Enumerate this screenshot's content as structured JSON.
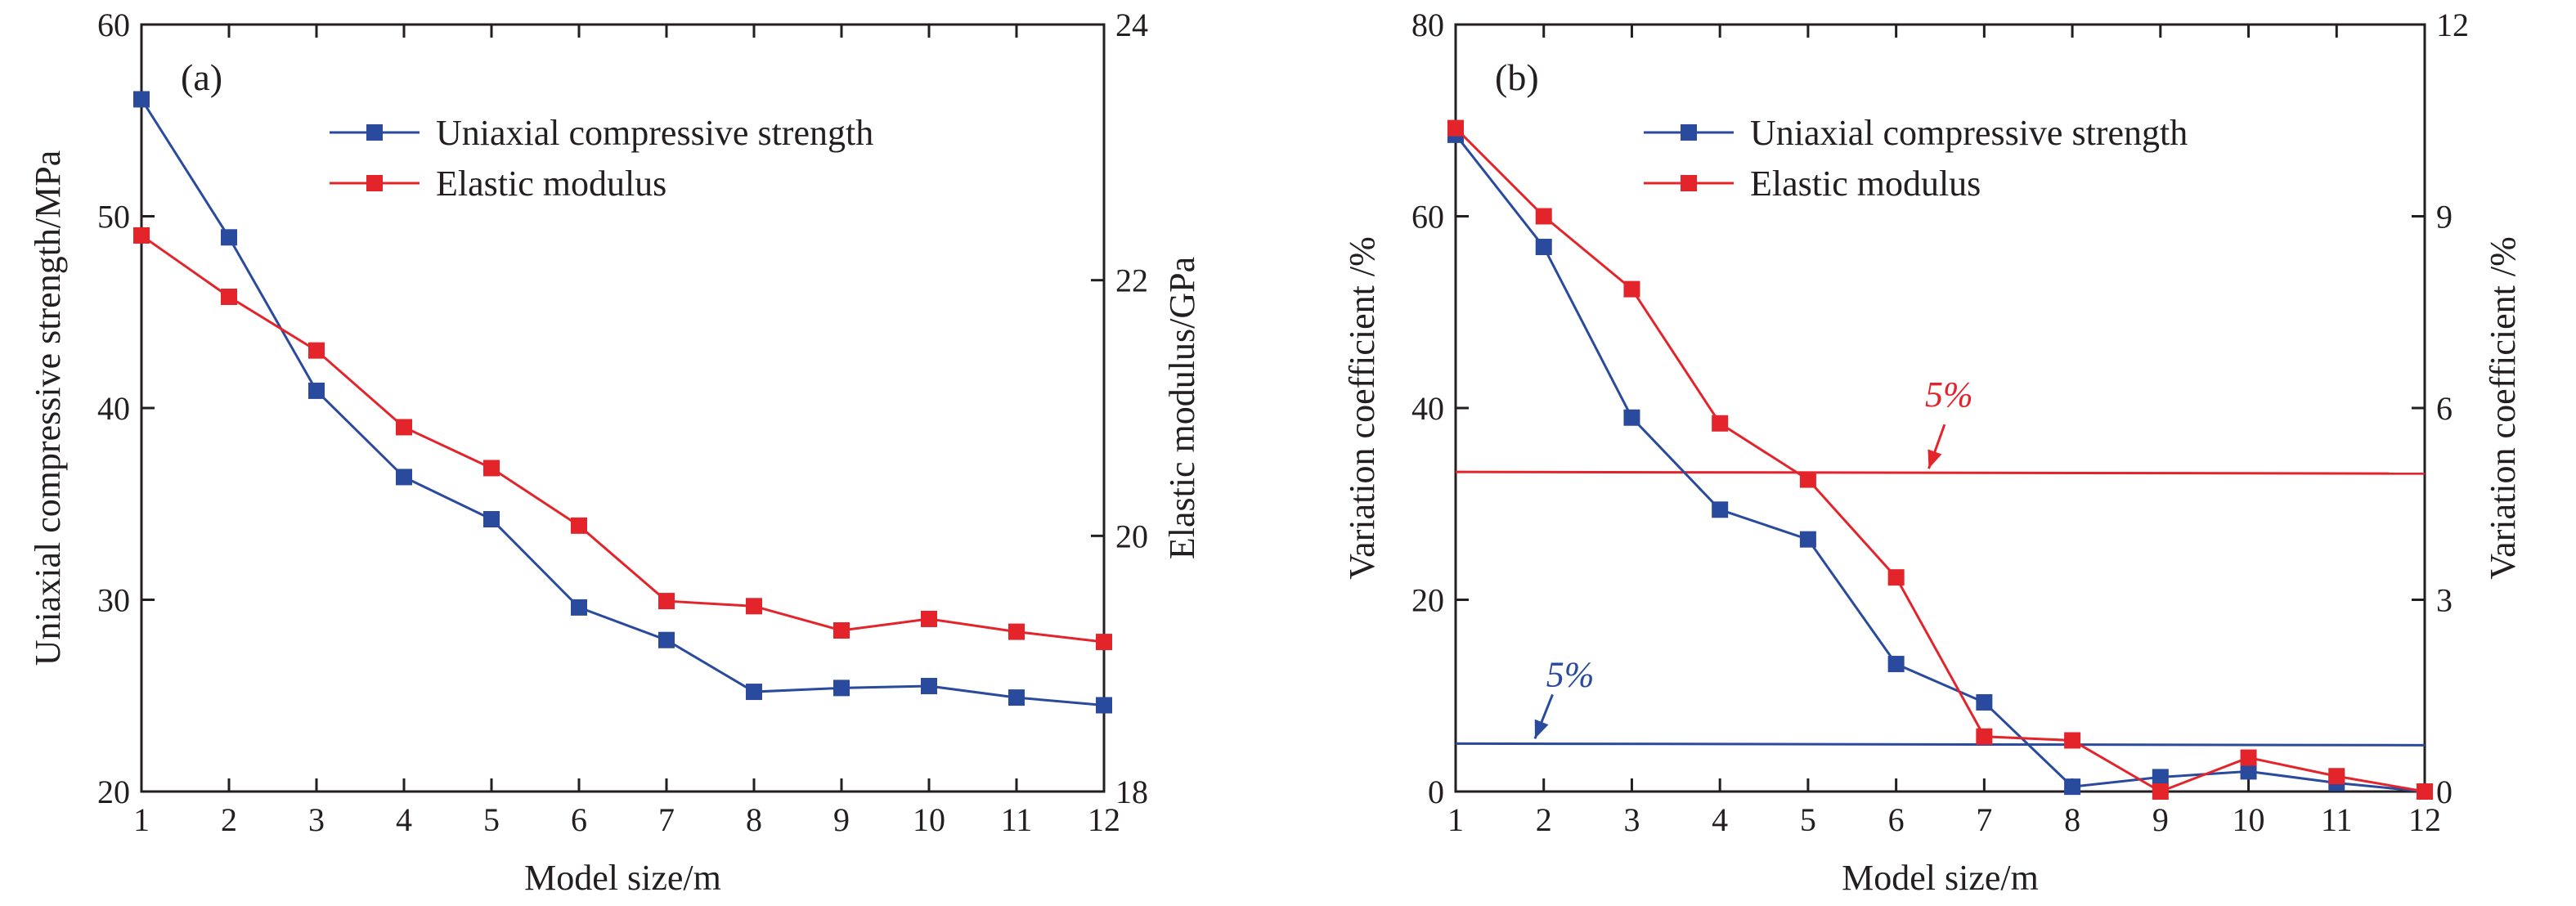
{
  "chart_data": [
    {
      "type": "line",
      "panel_label": "(a)",
      "xlabel": "Model size/m",
      "ylabel": "Uniaxial compressive strength/MPa",
      "y2label": "Elastic modulus/GPa",
      "x": [
        1,
        2,
        3,
        4,
        5,
        6,
        7,
        8,
        9,
        10,
        11,
        12
      ],
      "xlim": [
        1,
        12
      ],
      "xticks": [
        "1",
        "2",
        "3",
        "4",
        "5",
        "6",
        "7",
        "8",
        "9",
        "10",
        "11",
        "12"
      ],
      "ylim": [
        20,
        60
      ],
      "yticks": [
        "20",
        "30",
        "40",
        "50",
        "60"
      ],
      "y2lim": [
        18,
        24
      ],
      "y2ticks": [
        "18",
        "20",
        "22",
        "24"
      ],
      "legend_position": "top-right",
      "series": [
        {
          "name": "Uniaxial compressive strength",
          "axis": "left",
          "color": "#2a4a9e",
          "values": [
            56.1,
            48.9,
            40.9,
            36.4,
            34.2,
            29.6,
            27.9,
            25.2,
            25.4,
            25.5,
            24.9,
            24.5
          ]
        },
        {
          "name": "Elastic modulus",
          "axis": "right",
          "color": "#e3242b",
          "values": [
            22.35,
            21.87,
            21.45,
            20.85,
            20.53,
            20.08,
            19.49,
            19.45,
            19.26,
            19.35,
            19.25,
            19.17
          ]
        }
      ],
      "reference_lines": []
    },
    {
      "type": "line",
      "panel_label": "(b)",
      "xlabel": "Model size/m",
      "ylabel": "Variation coefficient /%",
      "y2label": "Variation coefficient /%",
      "x": [
        1,
        2,
        3,
        4,
        5,
        6,
        7,
        8,
        9,
        10,
        11,
        12
      ],
      "xlim": [
        1,
        12
      ],
      "xticks": [
        "1",
        "2",
        "3",
        "4",
        "5",
        "6",
        "7",
        "8",
        "9",
        "10",
        "11",
        "12"
      ],
      "ylim": [
        0,
        80
      ],
      "yticks": [
        "0",
        "20",
        "40",
        "60",
        "80"
      ],
      "y2lim": [
        0,
        12
      ],
      "y2ticks": [
        "0",
        "3",
        "6",
        "9",
        "12"
      ],
      "legend_position": "top-right",
      "series": [
        {
          "name": "Uniaxial compressive strength",
          "axis": "left",
          "color": "#2a4a9e",
          "values": [
            68.5,
            56.8,
            39.0,
            29.4,
            26.3,
            13.3,
            9.3,
            0.5,
            1.5,
            2.1,
            0.9,
            0.0
          ]
        },
        {
          "name": "Elastic modulus",
          "axis": "right",
          "color": "#e3242b",
          "values": [
            10.38,
            9.0,
            7.86,
            5.76,
            4.88,
            3.35,
            0.86,
            0.8,
            0.0,
            0.53,
            0.24,
            0.0
          ]
        }
      ],
      "reference_lines": [
        {
          "label": "5%",
          "axis": "left",
          "value": 5,
          "color": "#2a4a9e"
        },
        {
          "label": "5%",
          "axis": "right",
          "value": 5,
          "color": "#e3242b"
        }
      ]
    }
  ]
}
